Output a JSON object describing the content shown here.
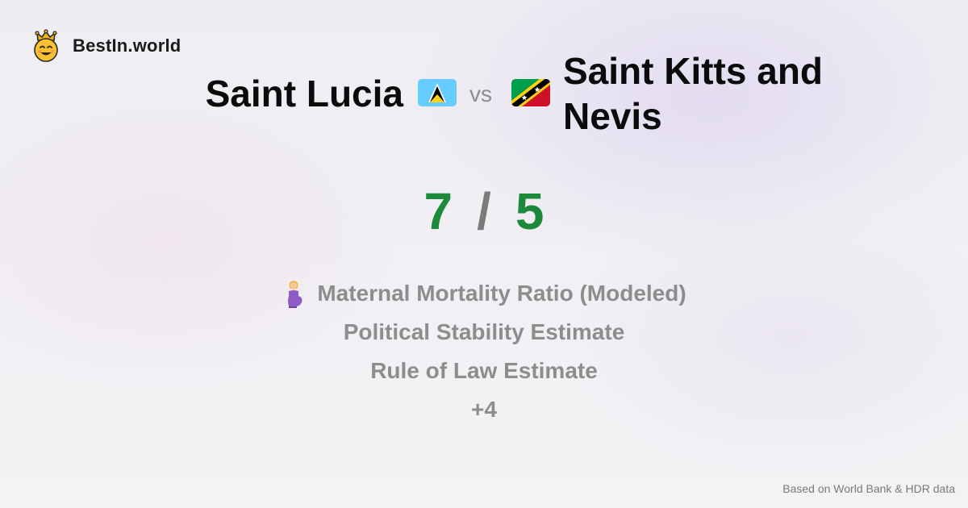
{
  "brand": {
    "name": "BestIn.world",
    "icon": "crown-smiley-icon"
  },
  "comparison": {
    "country_a": {
      "name": "Saint Lucia",
      "flag": "saint-lucia-flag-icon"
    },
    "vs_label": "vs",
    "country_b": {
      "name": "Saint Kitts and Nevis",
      "flag": "saint-kitts-and-nevis-flag-icon"
    }
  },
  "score": {
    "a": "7",
    "separator": "/",
    "b": "5",
    "color": "#1c8a3a"
  },
  "metrics": [
    {
      "label": "Maternal Mortality Ratio (Modeled)",
      "icon": "pregnant-woman-icon"
    },
    {
      "label": "Political Stability Estimate"
    },
    {
      "label": "Rule of Law Estimate"
    },
    {
      "label": "+4"
    }
  ],
  "footer": {
    "source_text": "Based on World Bank & HDR data"
  }
}
